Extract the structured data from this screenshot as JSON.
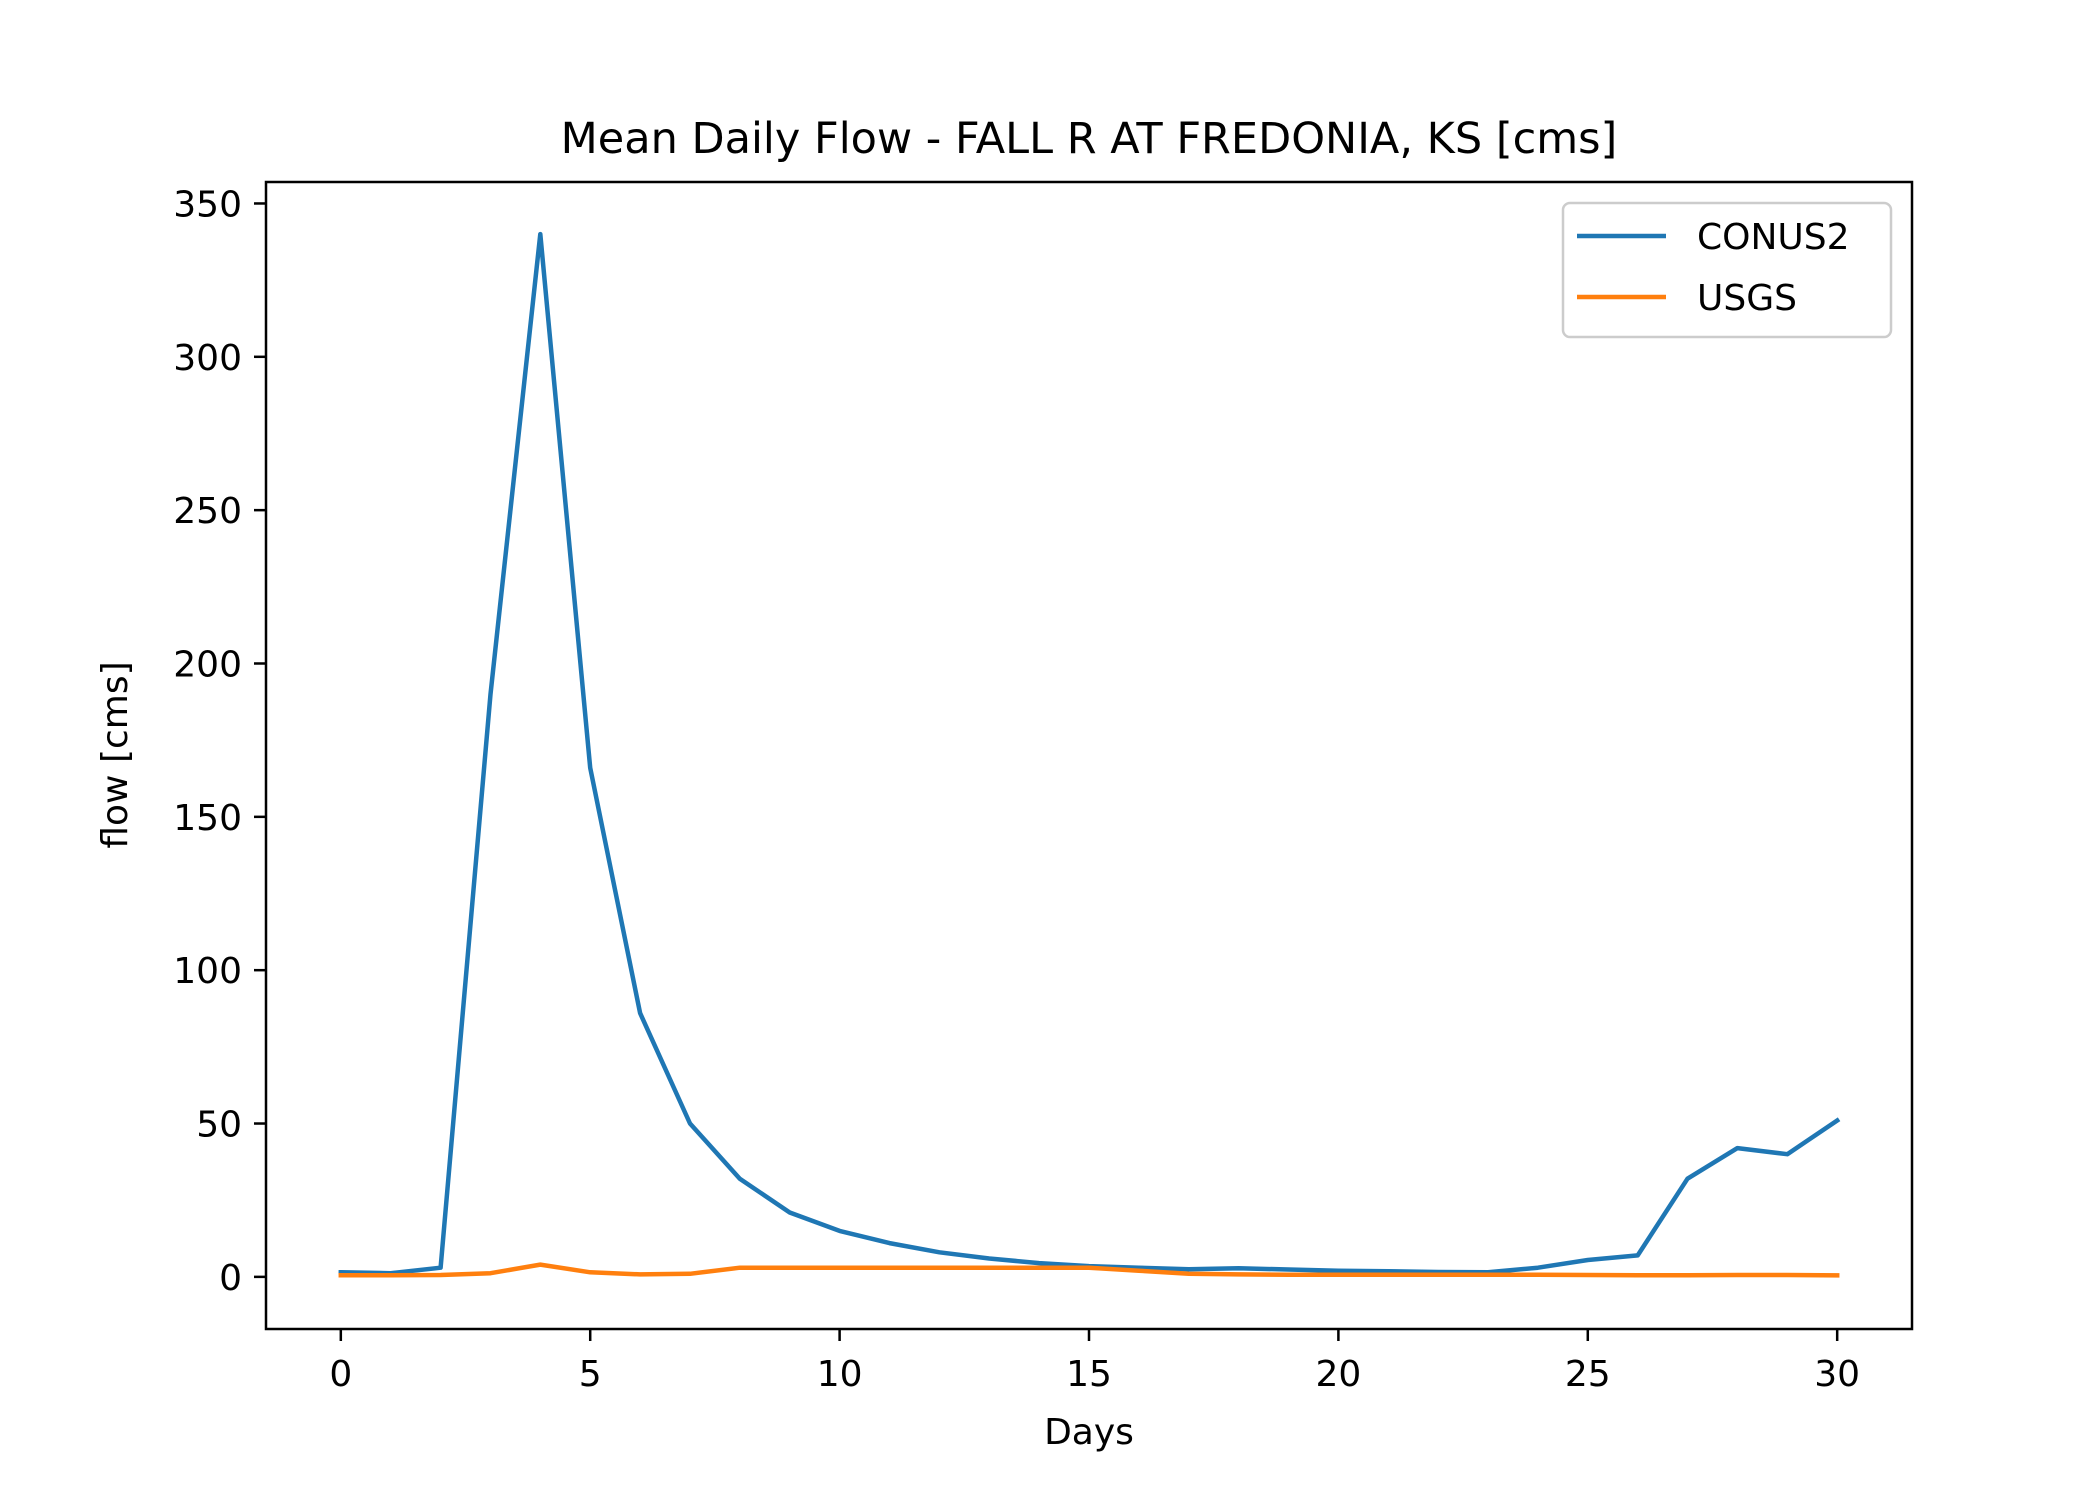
{
  "chart_data": {
    "type": "line",
    "title": "Mean Daily Flow - FALL R AT FREDONIA, KS [cms]",
    "xlabel": "Days",
    "ylabel": "flow [cms]",
    "xlim": [
      -1.5,
      31.5
    ],
    "ylim": [
      -17,
      357
    ],
    "xticks": [
      0,
      5,
      10,
      15,
      20,
      25,
      30
    ],
    "yticks": [
      0,
      50,
      100,
      150,
      200,
      250,
      300,
      350
    ],
    "grid": false,
    "legend_position": "top-right",
    "x": [
      0,
      1,
      2,
      3,
      4,
      5,
      6,
      7,
      8,
      9,
      10,
      11,
      12,
      13,
      14,
      15,
      16,
      17,
      18,
      19,
      20,
      21,
      22,
      23,
      24,
      25,
      26,
      27,
      28,
      29,
      30
    ],
    "series": [
      {
        "name": "CONUS2",
        "color": "#1f77b4",
        "values": [
          1.5,
          1.2,
          3,
          190,
          340,
          166,
          86,
          50,
          32,
          21,
          15,
          11,
          8,
          6,
          4.5,
          3.5,
          3,
          2.5,
          2.8,
          2.4,
          2,
          1.8,
          1.6,
          1.5,
          3,
          5.5,
          7,
          32,
          42,
          40,
          51
        ]
      },
      {
        "name": "USGS",
        "color": "#ff7f0e",
        "values": [
          0.5,
          0.5,
          0.6,
          1.2,
          4,
          1.5,
          0.8,
          1,
          3,
          3,
          3,
          3,
          3,
          3,
          3,
          3,
          2,
          1,
          0.8,
          0.7,
          0.7,
          0.7,
          0.7,
          0.7,
          0.7,
          0.6,
          0.5,
          0.5,
          0.6,
          0.6,
          0.5
        ]
      }
    ]
  }
}
